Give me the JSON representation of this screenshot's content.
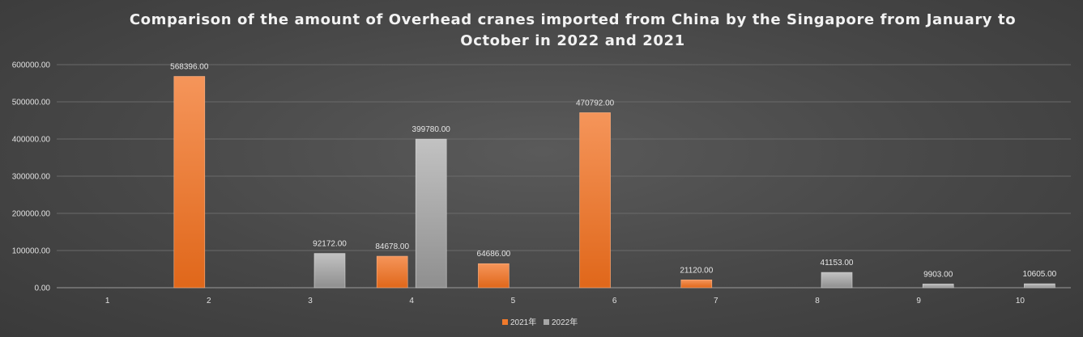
{
  "chart_data": {
    "type": "bar",
    "title_lines": [
      "Comparison of the amount of Overhead cranes imported from China by the Singapore from January to",
      "October in 2022 and 2021"
    ],
    "categories": [
      "1",
      "2",
      "3",
      "4",
      "5",
      "6",
      "7",
      "8",
      "9",
      "10"
    ],
    "series": [
      {
        "name": "2021年",
        "color": "#f07a2c",
        "values": [
          0,
          568396.0,
          0,
          84678.0,
          64686.0,
          470792.0,
          21120.0,
          0,
          0,
          0
        ],
        "labels": [
          "",
          "568396.00",
          "",
          "84678.00",
          "64686.00",
          "470792.00",
          "21120.00",
          "",
          "",
          ""
        ]
      },
      {
        "name": "2022年",
        "color": "#a6a6a6",
        "values": [
          0,
          0,
          92172.0,
          399780.0,
          0,
          0,
          0,
          41153.0,
          9903.0,
          10605.0
        ],
        "labels": [
          "",
          "",
          "92172.00",
          "399780.00",
          "",
          "",
          "",
          "41153.00",
          "9903.00",
          "10605.00"
        ]
      }
    ],
    "y_ticks": [
      "0.00",
      "100000.00",
      "200000.00",
      "300000.00",
      "400000.00",
      "500000.00",
      "600000.00"
    ],
    "ylim": [
      0,
      600000
    ],
    "grid": true,
    "legend_position": "bottom"
  }
}
